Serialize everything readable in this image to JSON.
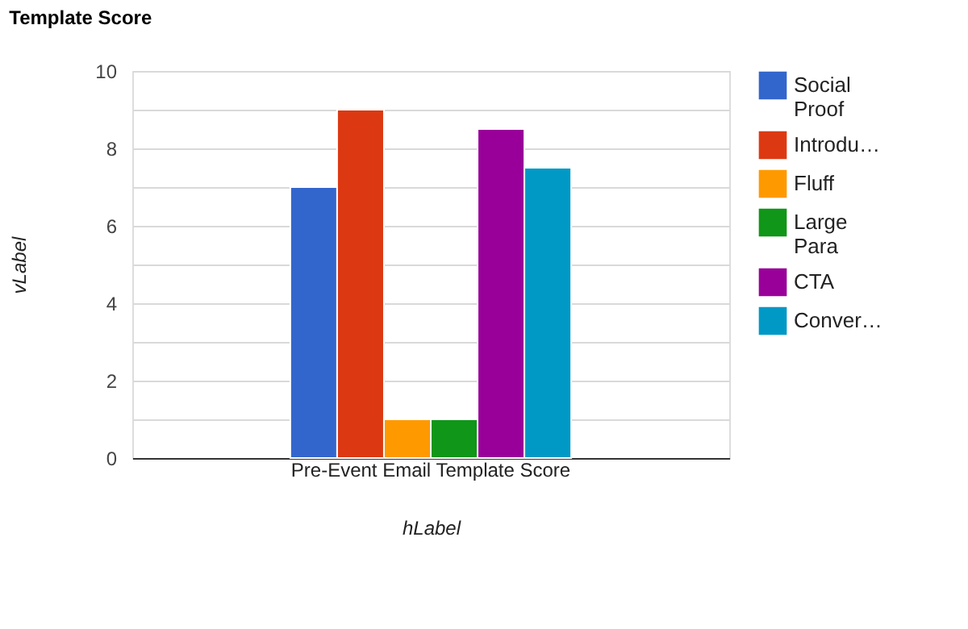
{
  "chart_data": {
    "type": "bar",
    "title": "Template Score",
    "xlabel": "hLabel",
    "ylabel": "vLabel",
    "categories": [
      "Pre-Event Email Template Score"
    ],
    "series": [
      {
        "name": "Social Proof",
        "color": "#3366cc",
        "values": [
          7
        ]
      },
      {
        "name": "Introdu…",
        "color": "#dc3912",
        "values": [
          9
        ]
      },
      {
        "name": "Fluff",
        "color": "#ff9900",
        "values": [
          1
        ]
      },
      {
        "name": "Large Para",
        "color": "#109618",
        "values": [
          1
        ]
      },
      {
        "name": "CTA",
        "color": "#990099",
        "values": [
          8.5
        ]
      },
      {
        "name": "Conver…",
        "color": "#0099c6",
        "values": [
          7.5
        ]
      }
    ],
    "ylim": [
      0,
      10
    ],
    "yticks": [
      0,
      {
        "value": 1,
        "label": null
      },
      2,
      {
        "value": 3,
        "label": null
      },
      4,
      {
        "value": 5,
        "label": null
      },
      6,
      {
        "value": 7,
        "label": null
      },
      8,
      {
        "value": 9,
        "label": null
      },
      10
    ],
    "grid": true,
    "legend": "right"
  }
}
